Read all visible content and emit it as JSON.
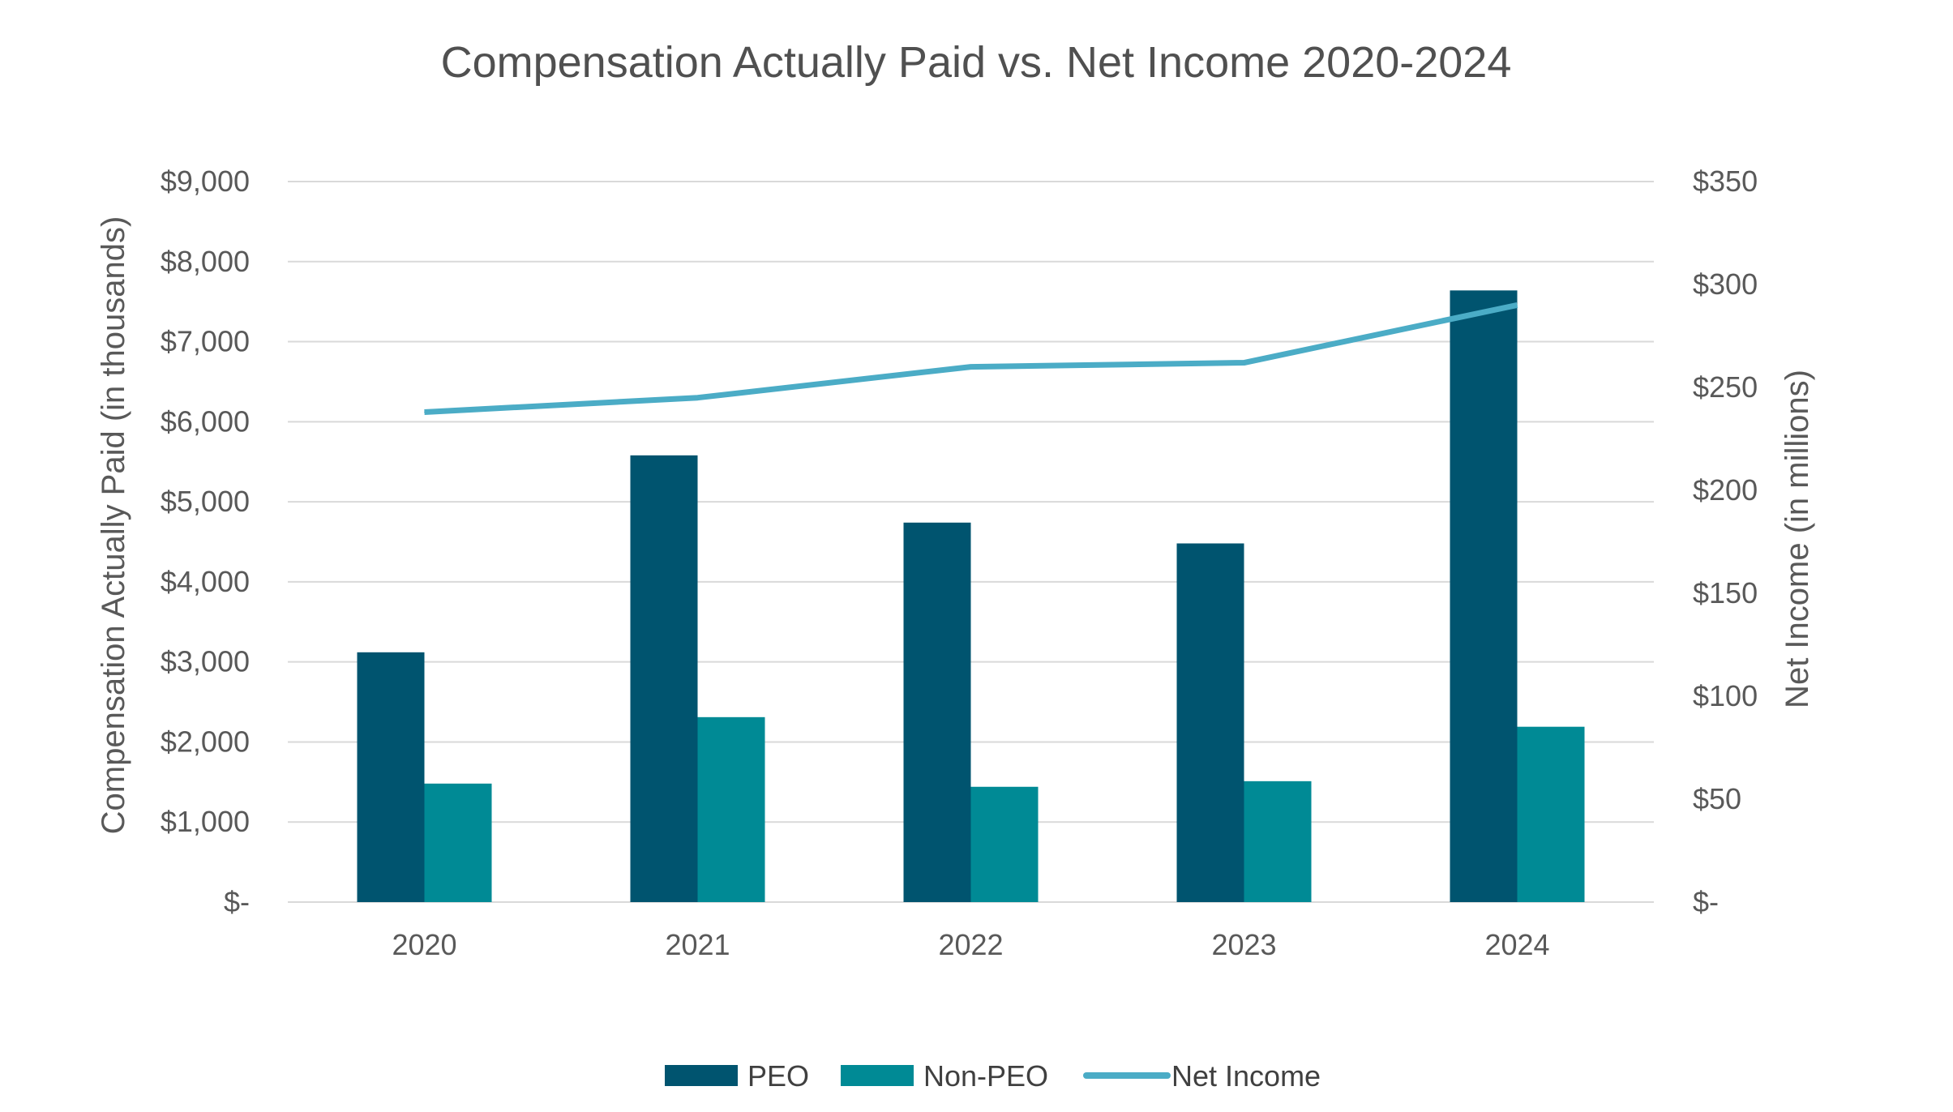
{
  "chart_data": {
    "type": "bar",
    "title": "Compensation Actually Paid vs. Net Income 2020-2024",
    "categories": [
      "2020",
      "2021",
      "2022",
      "2023",
      "2024"
    ],
    "series": [
      {
        "name": "PEO",
        "type": "bar",
        "axis": "left",
        "color": "#00546F",
        "values": [
          3120,
          5580,
          4740,
          4480,
          7640
        ]
      },
      {
        "name": "Non-PEO",
        "type": "bar",
        "axis": "left",
        "color": "#008A95",
        "values": [
          1480,
          2310,
          1440,
          1510,
          2190
        ]
      },
      {
        "name": "Net Income",
        "type": "line",
        "axis": "right",
        "color": "#4BACC6",
        "values": [
          238,
          245,
          260,
          262,
          290
        ]
      }
    ],
    "y_left": {
      "label": "Compensation Actually Paid (in thousands)",
      "min": 0,
      "max": 9000,
      "step": 1000,
      "tick_labels": [
        "$-",
        "$1,000",
        "$2,000",
        "$3,000",
        "$4,000",
        "$5,000",
        "$6,000",
        "$7,000",
        "$8,000",
        "$9,000"
      ]
    },
    "y_right": {
      "label": "Net Income (in millions)",
      "min": 0,
      "max": 350,
      "step": 50,
      "tick_labels": [
        "$-",
        "$50",
        "$100",
        "$150",
        "$200",
        "$250",
        "$300",
        "$350"
      ]
    },
    "grid": true,
    "legend_position": "bottom-center",
    "legend": [
      "PEO",
      "Non-PEO",
      "Net Income"
    ]
  }
}
